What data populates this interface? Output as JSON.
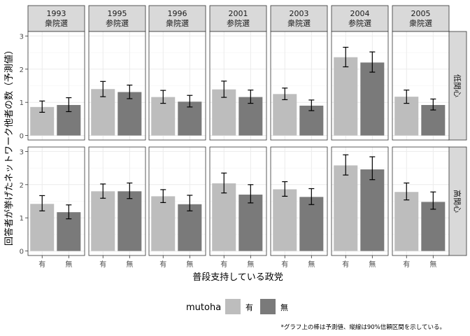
{
  "chart_data": {
    "type": "bar",
    "facets": [
      {
        "year": "1993",
        "election": "衆院選"
      },
      {
        "year": "1995",
        "election": "参院選"
      },
      {
        "year": "1996",
        "election": "衆院選"
      },
      {
        "year": "2001",
        "election": "参院選"
      },
      {
        "year": "2003",
        "election": "衆院選"
      },
      {
        "year": "2004",
        "election": "参院選"
      },
      {
        "year": "2005",
        "election": "衆院選"
      }
    ],
    "rows": [
      "低関心",
      "高関心"
    ],
    "categories": [
      "有",
      "無"
    ],
    "ylabel": "回答者が挙げたネットワーク他者の数（予測値）",
    "xlabel": "普段支持している政党",
    "ylim": [
      0,
      3
    ],
    "yticks": [
      "0",
      "1",
      "2",
      "3"
    ],
    "grid": true,
    "legend": {
      "title": "mutoha",
      "position": "bottom",
      "entries": [
        "有",
        "無"
      ]
    },
    "colors": {
      "有": "#bdbdbd",
      "無": "#7a7a7a",
      "strip": "#d9d9d9",
      "grid": "#ebebeb"
    },
    "series": [
      {
        "name": "低関心",
        "values": [
          {
            "有": [
              0.86,
              0.7,
              1.04
            ],
            "無": [
              0.92,
              0.72,
              1.14
            ]
          },
          {
            "有": [
              1.4,
              1.17,
              1.63
            ],
            "無": [
              1.31,
              1.11,
              1.52
            ]
          },
          {
            "有": [
              1.16,
              0.97,
              1.36
            ],
            "無": [
              1.02,
              0.86,
              1.21
            ]
          },
          {
            "有": [
              1.39,
              1.15,
              1.64
            ],
            "無": [
              1.16,
              0.97,
              1.37
            ]
          },
          {
            "有": [
              1.25,
              1.08,
              1.43
            ],
            "無": [
              0.9,
              0.75,
              1.07
            ]
          },
          {
            "有": [
              2.36,
              2.07,
              2.66
            ],
            "無": [
              2.2,
              1.91,
              2.52
            ]
          },
          {
            "有": [
              1.17,
              0.97,
              1.37
            ],
            "無": [
              0.92,
              0.77,
              1.1
            ]
          }
        ]
      },
      {
        "name": "高関心",
        "values": [
          {
            "有": [
              1.42,
              1.21,
              1.67
            ],
            "無": [
              1.17,
              0.97,
              1.39
            ]
          },
          {
            "有": [
              1.8,
              1.59,
              2.02
            ],
            "無": [
              1.8,
              1.58,
              2.05
            ]
          },
          {
            "有": [
              1.65,
              1.46,
              1.85
            ],
            "無": [
              1.41,
              1.21,
              1.68
            ]
          },
          {
            "有": [
              2.04,
              1.75,
              2.35
            ],
            "無": [
              1.7,
              1.45,
              2.0
            ]
          },
          {
            "有": [
              1.86,
              1.65,
              2.09
            ],
            "無": [
              1.63,
              1.4,
              1.88
            ]
          },
          {
            "有": [
              2.58,
              2.29,
              2.9
            ],
            "無": [
              2.46,
              2.15,
              2.84
            ]
          },
          {
            "有": [
              1.78,
              1.54,
              2.05
            ],
            "無": [
              1.48,
              1.26,
              1.78
            ]
          }
        ]
      }
    ]
  },
  "caption": "*グラフ上の棒は予測値、縦線は90%信頼区間を示している。"
}
